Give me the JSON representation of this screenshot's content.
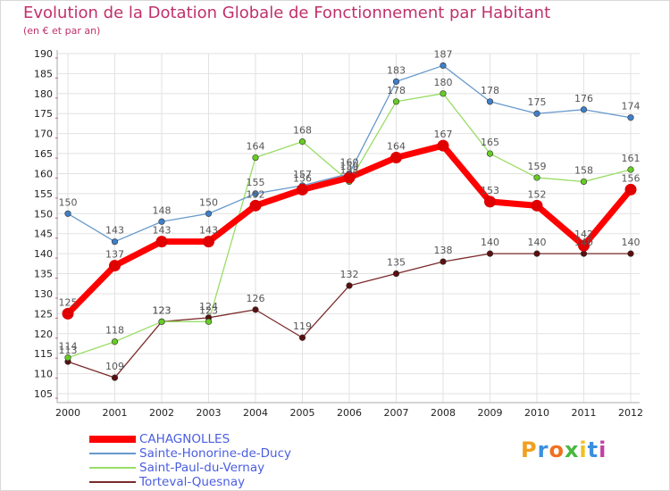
{
  "chart_data": {
    "type": "line",
    "title": "Evolution de la Dotation Globale de Fonctionnement par Habitant",
    "subtitle": "(en € et par an)",
    "x": [
      "2000",
      "2001",
      "2002",
      "2003",
      "2004",
      "2005",
      "2006",
      "2007",
      "2008",
      "2009",
      "2010",
      "2011",
      "2012"
    ],
    "ylim": [
      105,
      190
    ],
    "yticks": [
      105,
      110,
      115,
      120,
      125,
      130,
      135,
      140,
      145,
      150,
      155,
      160,
      165,
      170,
      175,
      180,
      185,
      190
    ],
    "series": [
      {
        "name": "CAHAGNOLLES",
        "color": "#ff0000",
        "point_color": "#e00000",
        "values": [
          125,
          137,
          143,
          143,
          152,
          156,
          159,
          164,
          167,
          153,
          152,
          142,
          156
        ]
      },
      {
        "name": "Sainte-Honorine-de-Ducy",
        "color": "#6699cc",
        "point_color": "#3f7fc8",
        "values": [
          150,
          143,
          148,
          150,
          155,
          157,
          160,
          183,
          187,
          178,
          175,
          176,
          174
        ]
      },
      {
        "name": "Saint-Paul-du-Vernay",
        "color": "#99dd66",
        "point_color": "#66cc22",
        "values": [
          114,
          118,
          123,
          123,
          164,
          168,
          158,
          178,
          180,
          165,
          159,
          158,
          161
        ]
      },
      {
        "name": "Torteval-Quesnay",
        "color": "#7a2a2a",
        "point_color": "#5a1010",
        "values": [
          113,
          109,
          123,
          124,
          126,
          119,
          132,
          135,
          138,
          140,
          140,
          140,
          140
        ]
      }
    ]
  },
  "logo": {
    "letters": [
      "P",
      "r",
      "o",
      "x",
      "i",
      "t",
      "i"
    ],
    "colors": [
      "#f0a020",
      "#3a8fe0",
      "#f07020",
      "#4ab840",
      "#f0c020",
      "#3a8fe0",
      "#c040a0"
    ]
  }
}
